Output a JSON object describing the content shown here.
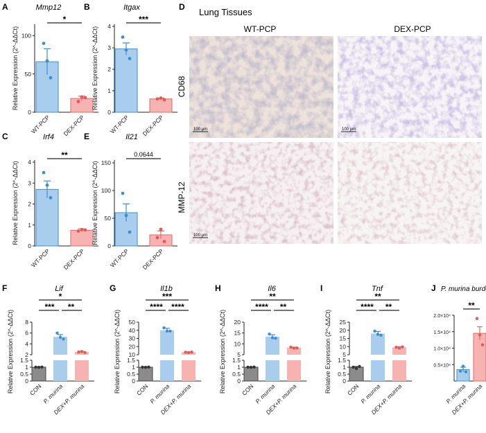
{
  "colors": {
    "wt": "#a9cdec",
    "wt_edge": "#3d8fd0",
    "dex": "#f6b3b1",
    "dex_edge": "#e06a66",
    "con": "#8b8b8b",
    "con_edge": "#444444",
    "dot_wt": "#3d8fd0",
    "dot_dex": "#e35a55",
    "dot_con": "#333333"
  },
  "images": {
    "title": "Lung Tissues",
    "col_labels": [
      "WT-PCP",
      "DEX-PCP"
    ],
    "row_labels": [
      "CD68",
      "MMP-12"
    ],
    "scale_label": "100 μm",
    "panel_label": "D"
  },
  "chart_data": [
    {
      "id": "A",
      "type": "bar",
      "title": "Mmp12",
      "ylabel": "Relative Expression (2^-ΔΔCt)",
      "categories": [
        "WT-PCP",
        "DEX-PCP"
      ],
      "values": [
        66,
        18
      ],
      "errors": [
        17,
        3
      ],
      "points": [
        [
          90,
          67,
          45
        ],
        [
          14,
          20,
          19
        ]
      ],
      "ylim": [
        0,
        115
      ],
      "yticks": [
        0,
        50,
        100
      ],
      "axis_break": false,
      "significance": [
        {
          "from": 0,
          "to": 1,
          "label": "*"
        }
      ]
    },
    {
      "id": "B",
      "type": "bar",
      "title": "Itgax",
      "ylabel": "Relative Expression (2^-ΔΔCt)",
      "categories": [
        "WT-PCP",
        "DEX-PCP"
      ],
      "values": [
        2.95,
        0.62
      ],
      "errors": [
        0.28,
        0.04
      ],
      "points": [
        [
          3.5,
          2.9,
          2.5
        ],
        [
          0.62,
          0.66,
          0.58
        ]
      ],
      "ylim": [
        0,
        4.1
      ],
      "yticks": [
        0,
        1,
        2,
        3,
        4
      ],
      "axis_break": false,
      "significance": [
        {
          "from": 0,
          "to": 1,
          "label": "***"
        }
      ]
    },
    {
      "id": "C",
      "type": "bar",
      "title": "Irf4",
      "ylabel": "Relative Expression (2^-ΔΔCt)",
      "categories": [
        "WT-PCP",
        "DEX-PCP"
      ],
      "values": [
        2.7,
        0.75
      ],
      "errors": [
        0.4,
        0.07
      ],
      "points": [
        [
          3.5,
          2.9,
          2.3
        ],
        [
          0.71,
          0.78,
          0.76
        ]
      ],
      "ylim": [
        0,
        4.1
      ],
      "yticks": [
        0,
        1,
        2,
        3,
        4
      ],
      "axis_break": false,
      "significance": [
        {
          "from": 0,
          "to": 1,
          "label": "**"
        }
      ]
    },
    {
      "id": "E",
      "type": "bar",
      "title": "Il21",
      "ylabel": "Relative Expression (2^-ΔΔCt)",
      "categories": [
        "WT-PCP",
        "DEX-PCP"
      ],
      "values": [
        60,
        20
      ],
      "errors": [
        16,
        7
      ],
      "points": [
        [
          95,
          55,
          25
        ],
        [
          15,
          30,
          8
        ]
      ],
      "ylim": [
        0,
        155
      ],
      "yticks": [
        0,
        50,
        100,
        150
      ],
      "axis_break": false,
      "significance": [
        {
          "from": 0,
          "to": 1,
          "label": "0.0644"
        }
      ]
    },
    {
      "id": "F",
      "type": "bar",
      "title": "Lif",
      "ylabel": "Relative Expression (2^-ΔΔCt)",
      "categories": [
        "CON",
        "P. murina",
        "DEX+P. murina"
      ],
      "values": [
        1.0,
        5.3,
        2.5
      ],
      "errors": [
        0.03,
        0.4,
        0.1
      ],
      "points": [
        [
          1.0,
          0.99,
          1.01
        ],
        [
          6.0,
          5.2,
          4.9
        ],
        [
          2.5,
          2.6,
          2.4
        ]
      ],
      "axis_break": true,
      "lower_ticks": [
        0,
        0.5,
        1.0,
        1.5
      ],
      "upper_ticks": [
        2,
        4,
        6,
        8
      ],
      "significance": [
        {
          "from": 0,
          "to": 2,
          "label": "*"
        },
        {
          "from": 0,
          "to": 1,
          "label": "***"
        },
        {
          "from": 1,
          "to": 2,
          "label": "**"
        }
      ]
    },
    {
      "id": "G",
      "type": "bar",
      "title": "Il1b",
      "ylabel": "Relative Expression (2^-ΔΔCt)",
      "categories": [
        "CON",
        "P. murina",
        "DEX+P. murina"
      ],
      "values": [
        1.0,
        40,
        13
      ],
      "errors": [
        0.03,
        2.5,
        0.5
      ],
      "points": [
        [
          1.0,
          0.99,
          1.01
        ],
        [
          43,
          39,
          39
        ],
        [
          13,
          12.6,
          13.2
        ]
      ],
      "axis_break": true,
      "lower_ticks": [
        0,
        0.5,
        1.0,
        1.5
      ],
      "upper_ticks": [
        10,
        20,
        30,
        40,
        50
      ],
      "significance": [
        {
          "from": 0,
          "to": 2,
          "label": "***"
        },
        {
          "from": 0,
          "to": 1,
          "label": "****"
        },
        {
          "from": 1,
          "to": 2,
          "label": "****"
        }
      ]
    },
    {
      "id": "H",
      "type": "bar",
      "title": "Il6",
      "ylabel": "Relative Expression (2^-ΔΔCt)",
      "categories": [
        "CON",
        "P. murina",
        "DEX+P. murina"
      ],
      "values": [
        1.0,
        13.3,
        8.2
      ],
      "errors": [
        0.03,
        0.9,
        0.3
      ],
      "points": [
        [
          1.0,
          0.99,
          1.01
        ],
        [
          14.5,
          12.8,
          12.6
        ],
        [
          8.5,
          8.0,
          8.1
        ]
      ],
      "axis_break": true,
      "lower_ticks": [
        0,
        0.5,
        1.0,
        1.5
      ],
      "upper_ticks": [
        5,
        10,
        15,
        20
      ],
      "significance": [
        {
          "from": 0,
          "to": 2,
          "label": "**"
        },
        {
          "from": 0,
          "to": 1,
          "label": "****"
        },
        {
          "from": 1,
          "to": 2,
          "label": "**"
        }
      ]
    },
    {
      "id": "I",
      "type": "bar",
      "title": "Tnf",
      "ylabel": "Relative Expression (2^-ΔΔCt)",
      "categories": [
        "CON",
        "P. murina",
        "DEX+P. murina"
      ],
      "values": [
        1.0,
        18,
        9.5
      ],
      "errors": [
        0.05,
        1.3,
        0.4
      ],
      "points": [
        [
          1.0,
          0.9,
          1.05
        ],
        [
          19.5,
          17.5,
          17
        ],
        [
          9.6,
          9.1,
          9.8
        ]
      ],
      "axis_break": true,
      "lower_ticks": [
        0,
        0.5,
        1.0,
        1.5
      ],
      "upper_ticks": [
        5,
        10,
        15,
        20,
        25
      ],
      "significance": [
        {
          "from": 0,
          "to": 2,
          "label": "**"
        },
        {
          "from": 0,
          "to": 1,
          "label": "****"
        },
        {
          "from": 1,
          "to": 2,
          "label": "**"
        }
      ]
    },
    {
      "id": "J",
      "type": "bar",
      "title": "P. murina burden",
      "ylabel": "",
      "categories": [
        "P. murina",
        "DEX+P. murina"
      ],
      "values": [
        3500,
        14500
      ],
      "errors": [
        700,
        2000
      ],
      "points": [
        [
          3000,
          4500,
          2800
        ],
        [
          19000,
          14000,
          11000
        ]
      ],
      "ylim": [
        0,
        20000
      ],
      "yticks": [
        5000,
        10000,
        15000,
        20000
      ],
      "ytick_labels": [
        "0.5×10⁴",
        "1.0×10⁴",
        "1.5×10⁴",
        "2.0×10⁴"
      ],
      "axis_break": false,
      "significance": [
        {
          "from": 0,
          "to": 1,
          "label": "**"
        }
      ]
    }
  ]
}
